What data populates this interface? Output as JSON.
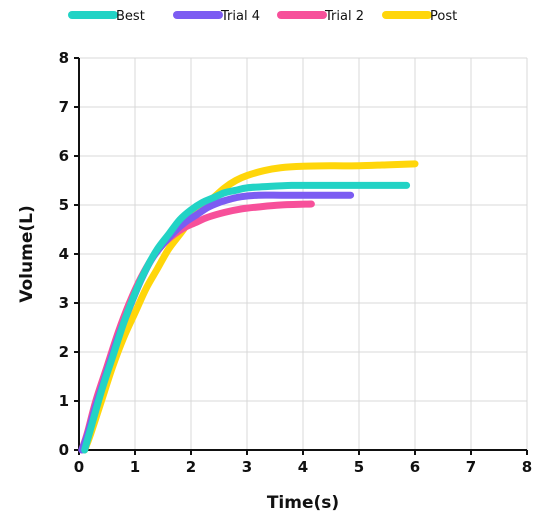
{
  "chart_data": {
    "type": "line",
    "title": "",
    "xlabel": "Time(s)",
    "ylabel": "Volume(L)",
    "xlim": [
      0,
      8
    ],
    "ylim": [
      0,
      8
    ],
    "xticks": [
      "0",
      "1",
      "2",
      "3",
      "4",
      "5",
      "6",
      "7",
      "8"
    ],
    "yticks": [
      "0",
      "1",
      "2",
      "3",
      "4",
      "5",
      "6",
      "7",
      "8"
    ],
    "grid": true,
    "legend_position": "top-center",
    "series": [
      {
        "name": "Best",
        "color": "#22d3c5",
        "points": [
          [
            0.1,
            0.0
          ],
          [
            0.2,
            0.4
          ],
          [
            0.4,
            1.2
          ],
          [
            0.6,
            1.9
          ],
          [
            0.8,
            2.6
          ],
          [
            1.0,
            3.2
          ],
          [
            1.2,
            3.7
          ],
          [
            1.4,
            4.1
          ],
          [
            1.6,
            4.4
          ],
          [
            1.8,
            4.7
          ],
          [
            2.0,
            4.9
          ],
          [
            2.2,
            5.05
          ],
          [
            2.4,
            5.15
          ],
          [
            2.6,
            5.25
          ],
          [
            2.8,
            5.3
          ],
          [
            3.0,
            5.35
          ],
          [
            3.4,
            5.38
          ],
          [
            3.8,
            5.4
          ],
          [
            4.2,
            5.4
          ],
          [
            4.8,
            5.4
          ],
          [
            5.4,
            5.4
          ],
          [
            5.85,
            5.4
          ]
        ]
      },
      {
        "name": "Trial 4",
        "color": "#7c5cf2",
        "points": [
          [
            0.05,
            0.0
          ],
          [
            0.15,
            0.3
          ],
          [
            0.3,
            0.9
          ],
          [
            0.5,
            1.6
          ],
          [
            0.7,
            2.3
          ],
          [
            0.9,
            2.9
          ],
          [
            1.1,
            3.45
          ],
          [
            1.3,
            3.9
          ],
          [
            1.5,
            4.2
          ],
          [
            1.7,
            4.45
          ],
          [
            1.9,
            4.65
          ],
          [
            2.1,
            4.8
          ],
          [
            2.3,
            4.95
          ],
          [
            2.5,
            5.05
          ],
          [
            2.7,
            5.12
          ],
          [
            2.9,
            5.17
          ],
          [
            3.2,
            5.2
          ],
          [
            3.6,
            5.2
          ],
          [
            4.0,
            5.2
          ],
          [
            4.4,
            5.2
          ],
          [
            4.85,
            5.2
          ]
        ]
      },
      {
        "name": "Trial 2",
        "color": "#f7509a",
        "points": [
          [
            0.05,
            0.0
          ],
          [
            0.15,
            0.35
          ],
          [
            0.3,
            1.0
          ],
          [
            0.5,
            1.7
          ],
          [
            0.7,
            2.4
          ],
          [
            0.9,
            3.0
          ],
          [
            1.1,
            3.5
          ],
          [
            1.3,
            3.9
          ],
          [
            1.5,
            4.2
          ],
          [
            1.7,
            4.4
          ],
          [
            1.9,
            4.55
          ],
          [
            2.1,
            4.65
          ],
          [
            2.3,
            4.75
          ],
          [
            2.6,
            4.85
          ],
          [
            2.9,
            4.92
          ],
          [
            3.2,
            4.96
          ],
          [
            3.6,
            5.0
          ],
          [
            4.15,
            5.02
          ]
        ]
      },
      {
        "name": "Post",
        "color": "#ffd60a",
        "points": [
          [
            0.1,
            0.0
          ],
          [
            0.2,
            0.3
          ],
          [
            0.4,
            1.0
          ],
          [
            0.6,
            1.7
          ],
          [
            0.8,
            2.3
          ],
          [
            1.0,
            2.8
          ],
          [
            1.2,
            3.3
          ],
          [
            1.4,
            3.7
          ],
          [
            1.6,
            4.1
          ],
          [
            1.8,
            4.4
          ],
          [
            2.0,
            4.7
          ],
          [
            2.2,
            4.95
          ],
          [
            2.4,
            5.15
          ],
          [
            2.6,
            5.35
          ],
          [
            2.8,
            5.5
          ],
          [
            3.0,
            5.6
          ],
          [
            3.3,
            5.7
          ],
          [
            3.6,
            5.76
          ],
          [
            4.0,
            5.79
          ],
          [
            4.5,
            5.8
          ],
          [
            5.0,
            5.8
          ],
          [
            5.5,
            5.82
          ],
          [
            6.0,
            5.84
          ]
        ]
      }
    ]
  }
}
